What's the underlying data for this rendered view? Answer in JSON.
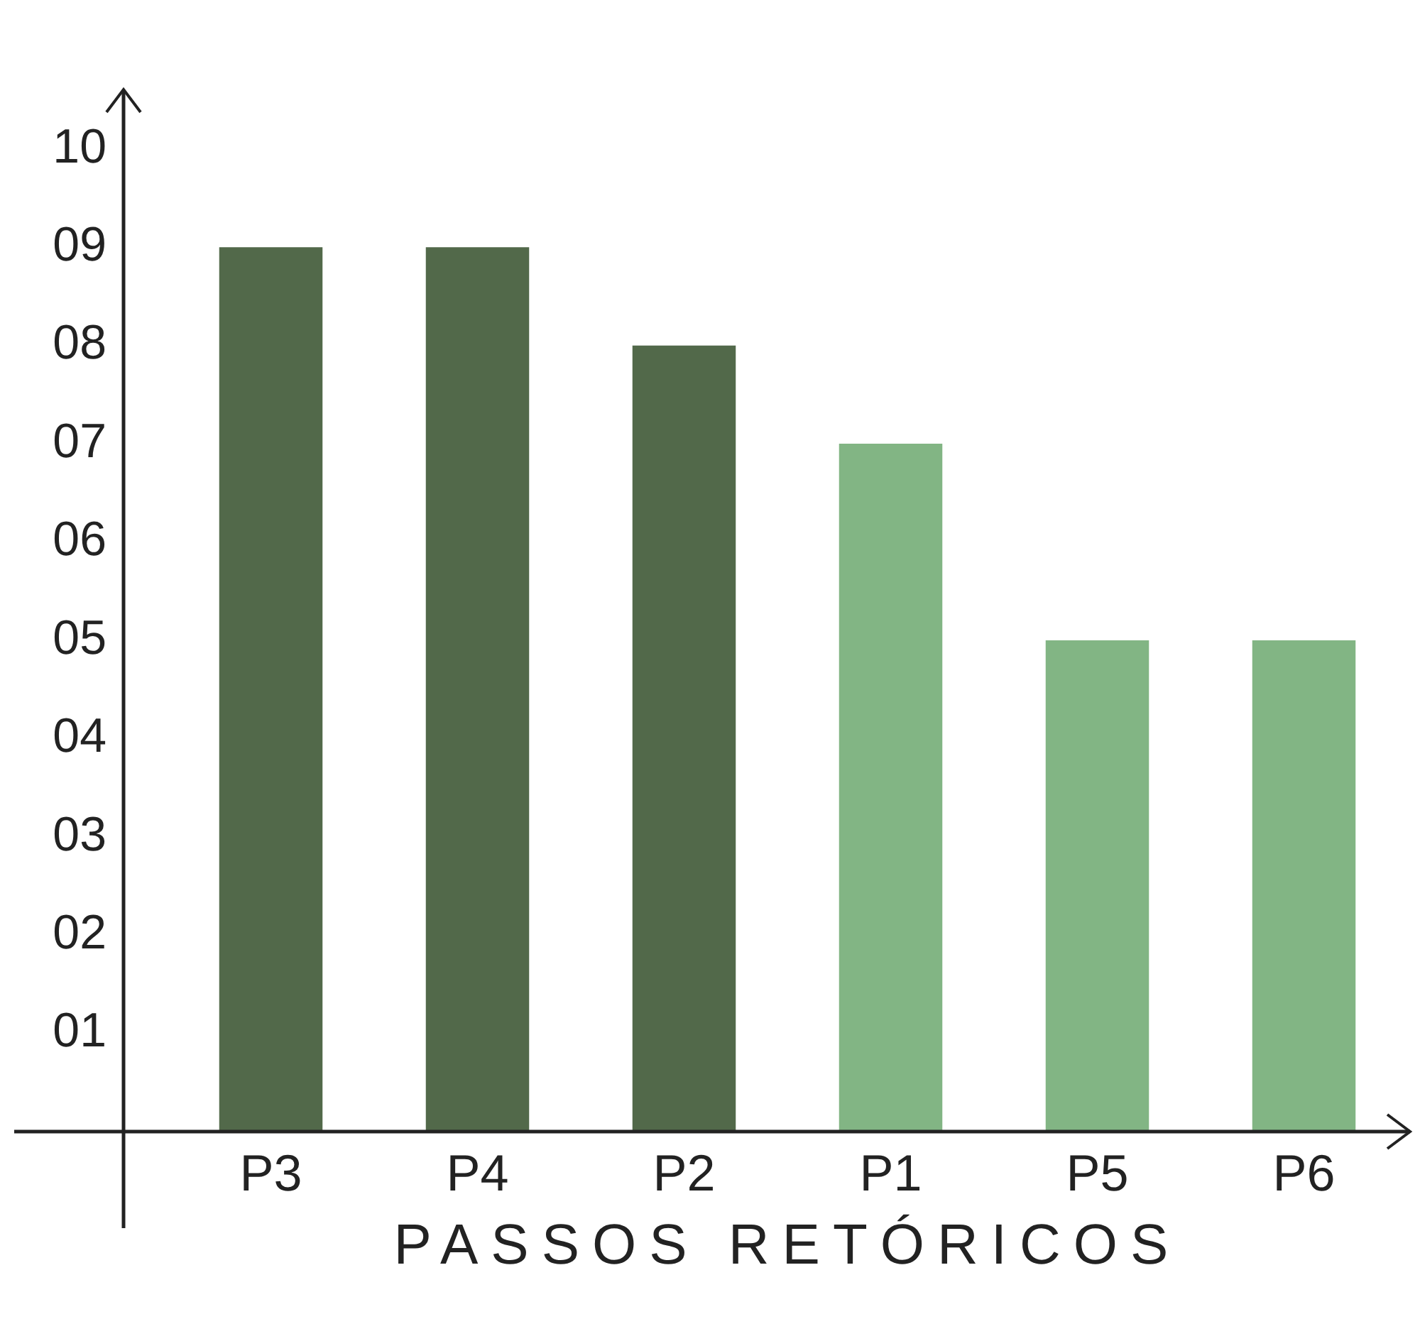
{
  "chart_data": {
    "type": "bar",
    "xlabel": "PASSOS RETÓRICOS",
    "categories": [
      "P3",
      "P4",
      "P2",
      "P1",
      "P5",
      "P6"
    ],
    "values": [
      9,
      9,
      8,
      7,
      5,
      5
    ],
    "colors": [
      "#52694a",
      "#52694a",
      "#52694a",
      "#82b584",
      "#82b584",
      "#82b584"
    ],
    "ylim": [
      0,
      10.6
    ],
    "yticks": [
      {
        "value": 1,
        "label": "01"
      },
      {
        "value": 2,
        "label": "02"
      },
      {
        "value": 3,
        "label": "03"
      },
      {
        "value": 4,
        "label": "04"
      },
      {
        "value": 5,
        "label": "05"
      },
      {
        "value": 6,
        "label": "06"
      },
      {
        "value": 7,
        "label": "07"
      },
      {
        "value": 8,
        "label": "08"
      },
      {
        "value": 9,
        "label": "09"
      },
      10
    ],
    "grid": false,
    "legend": false
  }
}
